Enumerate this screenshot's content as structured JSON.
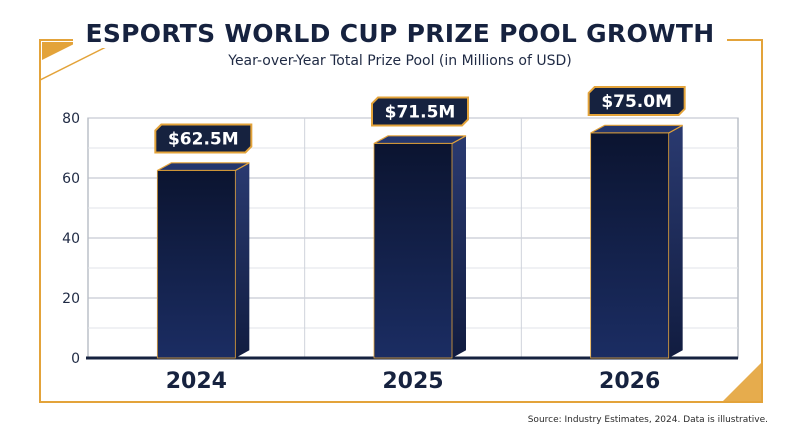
{
  "title": "ESPORTS WORLD CUP PRIZE POOL GROWTH",
  "subtitle": "Year-over-Year Total Prize Pool (in Millions of USD)",
  "source": "Source: Industry Estimates, 2024. Data is illustrative.",
  "colors": {
    "navy": "#16223f",
    "gold": "#e3a33a",
    "bar_top": "#0b1430",
    "bar_bottom": "#1b2d63",
    "grid": "#cfd3db"
  },
  "chart_data": {
    "type": "bar",
    "categories": [
      "2024",
      "2025",
      "2026"
    ],
    "values": [
      62.5,
      71.5,
      75.0
    ],
    "data_labels": [
      "$62.5M",
      "$71.5M",
      "$75.0M"
    ],
    "ylim": [
      0,
      80
    ],
    "yticks": [
      "0",
      "20",
      "40",
      "60",
      "80"
    ],
    "grid": true
  }
}
